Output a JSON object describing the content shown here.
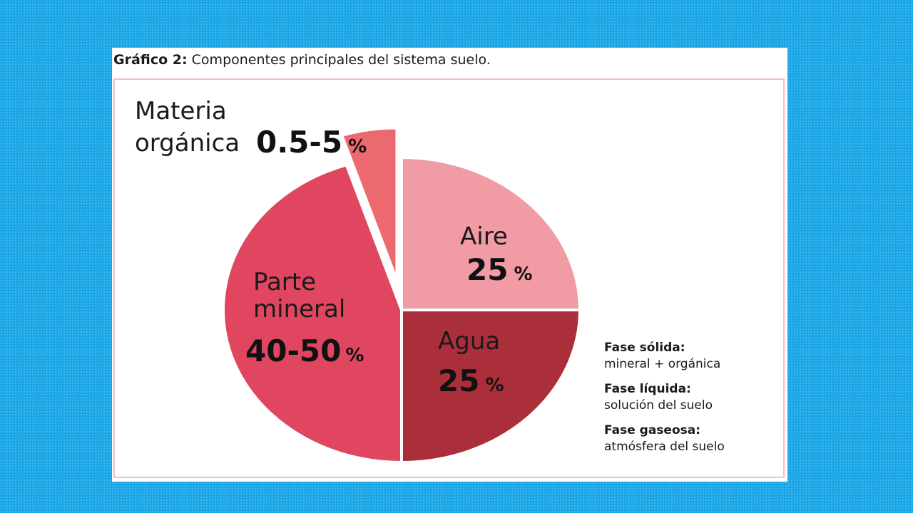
{
  "caption": {
    "lead": "Gráfico 2:",
    "text": " Componentes principales del sistema suelo."
  },
  "chart_data": {
    "type": "pie",
    "slices": [
      {
        "name": "Aire",
        "label": "Aire",
        "value_text": "25",
        "unit": "%",
        "value": 25,
        "color": "#f19ba5"
      },
      {
        "name": "Agua",
        "label": "Agua",
        "value_text": "25",
        "unit": "%",
        "value": 25,
        "color": "#ab2f3b"
      },
      {
        "name": "Parte mineral",
        "label_lines": [
          "Parte",
          "mineral"
        ],
        "value_text": "40-50",
        "unit": "%",
        "value": 45,
        "color": "#e04660"
      },
      {
        "name": "Materia orgánica",
        "label_lines": [
          "Materia",
          "orgánica"
        ],
        "value_text": "0.5-5",
        "unit": "%",
        "value": 5,
        "color": "#ec6a6f",
        "exploded": true
      }
    ]
  },
  "notes": [
    {
      "title": "Fase sólida:",
      "desc": "mineral + orgánica"
    },
    {
      "title": "Fase líquida:",
      "desc": "solución del suelo"
    },
    {
      "title": "Fase gaseosa:",
      "desc": "atmósfera del suelo"
    }
  ]
}
